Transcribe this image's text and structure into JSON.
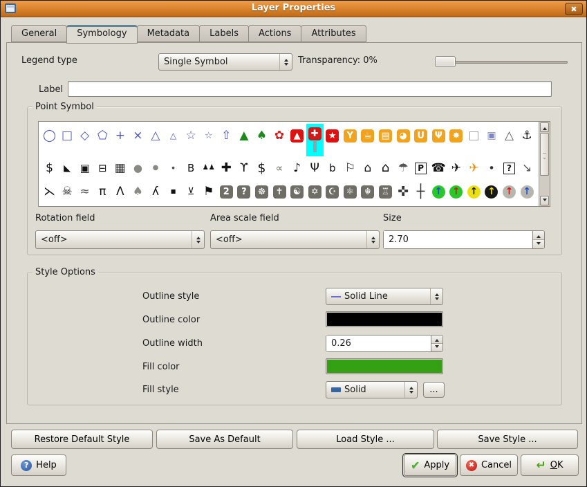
{
  "window": {
    "title": "Layer Properties"
  },
  "tabs": [
    {
      "label": "General",
      "active": false
    },
    {
      "label": "Symbology",
      "active": true
    },
    {
      "label": "Metadata",
      "active": false
    },
    {
      "label": "Labels",
      "active": false
    },
    {
      "label": "Actions",
      "active": false
    },
    {
      "label": "Attributes",
      "active": false
    }
  ],
  "legend": {
    "label": "Legend type",
    "value": "Single Symbol",
    "transparency_label": "Transparency: 0%",
    "transparency_percent": 0
  },
  "label_field": {
    "label": "Label",
    "value": "",
    "placeholder": ""
  },
  "point_symbol": {
    "title": "Point Symbol",
    "rotation": {
      "label": "Rotation field",
      "value": "<off>"
    },
    "area_scale": {
      "label": "Area scale field",
      "value": "<off>"
    },
    "size": {
      "label": "Size",
      "value": "2.70"
    },
    "rows": [
      [
        {
          "n": "circle",
          "g": "◯",
          "c": "#4a54c4"
        },
        {
          "n": "square",
          "g": "□",
          "c": "#4a54c4"
        },
        {
          "n": "diamond",
          "g": "◇",
          "c": "#4a54c4"
        },
        {
          "n": "pentagon",
          "g": "⬠",
          "c": "#4a54c4"
        },
        {
          "n": "cross",
          "g": "+",
          "c": "#4a54c4"
        },
        {
          "n": "x",
          "g": "×",
          "c": "#4a54c4"
        },
        {
          "n": "triangle",
          "g": "△",
          "c": "#4a54c4"
        },
        {
          "n": "triangle-small",
          "g": "△",
          "c": "#4a54c4",
          "fs": 12
        },
        {
          "n": "star",
          "g": "☆",
          "c": "#4a54c4"
        },
        {
          "n": "star-small",
          "g": "☆",
          "c": "#4a54c4",
          "fs": 13
        },
        {
          "n": "arrow-up",
          "g": "⇧",
          "c": "#4a54c4"
        },
        {
          "n": "pine-tree",
          "g": "▲",
          "c": "#1e8a1e"
        },
        {
          "n": "round-tree",
          "g": "♠",
          "c": "#1e8a1e"
        },
        {
          "n": "flower",
          "g": "✿",
          "c": "#d02020"
        },
        {
          "n": "flame",
          "g": "▲",
          "c": "#ffffff",
          "bg": "#e01010",
          "shape": "rbox"
        },
        {
          "n": "first-aid",
          "g": "✚",
          "c": "#ffffff",
          "bg": "#d01818",
          "shape": "rbox",
          "sel": true,
          "pole": true
        },
        {
          "n": "star-badge",
          "g": "★",
          "c": "#ffffff",
          "bg": "#e01010",
          "shape": "rbox"
        },
        {
          "n": "cocktail",
          "g": "Y",
          "c": "#ffffff",
          "bg": "#f2a31e",
          "shape": "rbox"
        },
        {
          "n": "cafe",
          "g": "☕",
          "c": "#ffffff",
          "bg": "#f2a31e",
          "shape": "rbox"
        },
        {
          "n": "cinema",
          "g": "▤",
          "c": "#ffffff",
          "bg": "#f2a31e",
          "shape": "rbox"
        },
        {
          "n": "pizza",
          "g": "◕",
          "c": "#ffffff",
          "bg": "#f2a31e",
          "shape": "rbox"
        },
        {
          "n": "beer",
          "g": "U",
          "c": "#ffffff",
          "bg": "#f2a31e",
          "shape": "rbox"
        },
        {
          "n": "restaurant",
          "g": "Ψ",
          "c": "#ffffff",
          "bg": "#f2a31e",
          "shape": "rbox"
        },
        {
          "n": "bakery",
          "g": "✸",
          "c": "#ffffff",
          "bg": "#f2a31e",
          "shape": "rbox"
        },
        {
          "n": "square-outline",
          "g": "□",
          "c": "#9a9a94"
        },
        {
          "n": "square-nested",
          "g": "▣",
          "c": "#7a86c8",
          "fs": 14
        },
        {
          "n": "triangle-outline",
          "g": "△",
          "c": "#555555"
        },
        {
          "n": "anchor",
          "g": "⚓",
          "c": "#111111"
        }
      ],
      [
        {
          "n": "dollar",
          "g": "$",
          "c": "#111111"
        },
        {
          "n": "boat",
          "g": "◣",
          "c": "#111111",
          "fs": 13
        },
        {
          "n": "camera",
          "g": "▣",
          "c": "#111111",
          "fs": 15
        },
        {
          "n": "car",
          "g": "⊟",
          "c": "#111111",
          "fs": 15
        },
        {
          "n": "building",
          "g": "▦",
          "c": "#333333"
        },
        {
          "n": "ellipse",
          "g": "●",
          "c": "#8a8a84",
          "fs": 15
        },
        {
          "n": "circle-small",
          "g": "●",
          "c": "#8a8a84",
          "fs": 10
        },
        {
          "n": "dot",
          "g": "●",
          "c": "#555555",
          "fs": 5
        },
        {
          "n": "gas-pump",
          "g": "B",
          "c": "#111111",
          "fs": 15
        },
        {
          "n": "people",
          "g": "♟♟",
          "c": "#111111",
          "fs": 10
        },
        {
          "n": "medical-cross",
          "g": "✚",
          "c": "#111111",
          "fs": 18
        },
        {
          "n": "deer",
          "g": "ϒ",
          "c": "#111111"
        },
        {
          "n": "dollar-large",
          "g": "$",
          "c": "#111111",
          "fs": 19
        },
        {
          "n": "fish",
          "g": "∝",
          "c": "#6a6a64",
          "fs": 15
        },
        {
          "n": "flag-note",
          "g": "♪",
          "c": "#111111"
        },
        {
          "n": "fork-knife",
          "g": "Ψ",
          "c": "#111111"
        },
        {
          "n": "fuel",
          "g": "b",
          "c": "#111111",
          "fs": 15
        },
        {
          "n": "golf",
          "g": "⚐",
          "c": "#111111"
        },
        {
          "n": "house-outline",
          "g": "⌂",
          "c": "#111111"
        },
        {
          "n": "house",
          "g": "⌂",
          "c": "#000000",
          "fs": 18
        },
        {
          "n": "balloon",
          "g": "☂",
          "c": "#555555"
        },
        {
          "n": "parking",
          "g": "P",
          "c": "#111111",
          "shape": "box"
        },
        {
          "n": "telephone",
          "g": "☎",
          "c": "#111111"
        },
        {
          "n": "airplane",
          "g": "✈",
          "c": "#111111"
        },
        {
          "n": "airplane-orange",
          "g": "✈",
          "c": "#e8941c"
        },
        {
          "n": "dot-small",
          "g": "●",
          "c": "#333333",
          "fs": 6
        },
        {
          "n": "question",
          "g": "?",
          "c": "#111111",
          "shape": "box"
        },
        {
          "n": "arrow-corner",
          "g": "↘",
          "c": "#555555"
        }
      ],
      [
        {
          "n": "skier",
          "g": "⋋",
          "c": "#111111"
        },
        {
          "n": "skull",
          "g": "☠",
          "c": "#111111"
        },
        {
          "n": "swimmer",
          "g": "≈",
          "c": "#555555"
        },
        {
          "n": "picnic-table",
          "g": "π",
          "c": "#111111"
        },
        {
          "n": "tent",
          "g": "Λ",
          "c": "#111111"
        },
        {
          "n": "tree-gray",
          "g": "♠",
          "c": "#8a8a84"
        },
        {
          "n": "hiker",
          "g": "ʎ",
          "c": "#111111"
        },
        {
          "n": "square-small",
          "g": "■",
          "c": "#111111",
          "fs": 8
        },
        {
          "n": "mine-cart",
          "g": "⊻",
          "c": "#111111",
          "fs": 14
        },
        {
          "n": "flag",
          "g": "⚑",
          "c": "#111111"
        },
        {
          "n": "badge-2",
          "g": "2",
          "c": "#ffffff",
          "bg": "#6e6e66",
          "shape": "rbox"
        },
        {
          "n": "badge-question",
          "g": "?",
          "c": "#ffffff",
          "bg": "#6e6e66",
          "shape": "rbox"
        },
        {
          "n": "badge-dharma-wheel",
          "g": "☸",
          "c": "#ffffff",
          "bg": "#6e6e66",
          "shape": "rbox"
        },
        {
          "n": "badge-cross",
          "g": "✝",
          "c": "#ffffff",
          "bg": "#6e6e66",
          "shape": "rbox"
        },
        {
          "n": "badge-yin-yang",
          "g": "☯",
          "c": "#ffffff",
          "bg": "#6e6e66",
          "shape": "rbox"
        },
        {
          "n": "badge-star-of-david",
          "g": "✡",
          "c": "#ffffff",
          "bg": "#6e6e66",
          "shape": "rbox"
        },
        {
          "n": "badge-crescent",
          "g": "☪",
          "c": "#ffffff",
          "bg": "#6e6e66",
          "shape": "rbox"
        },
        {
          "n": "badge-atom",
          "g": "⚛",
          "c": "#ffffff",
          "bg": "#6e6e66",
          "shape": "rbox"
        },
        {
          "n": "badge-khanda",
          "g": "☬",
          "c": "#ffffff",
          "bg": "#6e6e66",
          "shape": "rbox"
        },
        {
          "n": "badge-temple",
          "g": "♖",
          "c": "#ffffff",
          "bg": "#6e6e66",
          "shape": "rbox"
        },
        {
          "n": "compass-rose",
          "g": "✜",
          "c": "#333333",
          "fs": 19
        },
        {
          "n": "north-arrow",
          "g": "┼",
          "c": "#333333",
          "fs": 19
        },
        {
          "n": "arrow-marker-green-blue",
          "g": "↑",
          "c": "#2050cc",
          "bg": "#28c828",
          "shape": "circle"
        },
        {
          "n": "arrow-marker-green-red",
          "g": "↑",
          "c": "#d01818",
          "bg": "#28c828",
          "shape": "circle"
        },
        {
          "n": "arrow-marker-yellow-black",
          "g": "↑",
          "c": "#222222",
          "bg": "#ecdf12",
          "shape": "circle"
        },
        {
          "n": "arrow-marker-black-yellow",
          "g": "↑",
          "c": "#ecdf12",
          "bg": "#181818",
          "shape": "circle"
        },
        {
          "n": "arrow-marker-gray-red",
          "g": "↑",
          "c": "#d01818",
          "bg": "#b6b6ae",
          "shape": "circle"
        },
        {
          "n": "arrow-marker-gray-blue",
          "g": "↑",
          "c": "#2050cc",
          "bg": "#b6b6ae",
          "shape": "circle"
        }
      ]
    ]
  },
  "style_options": {
    "title": "Style Options",
    "outline_style": {
      "label": "Outline style",
      "value": "Solid Line"
    },
    "outline_color": {
      "label": "Outline color",
      "color": "#000000"
    },
    "outline_width": {
      "label": "Outline width",
      "value": "0.26"
    },
    "fill_color": {
      "label": "Fill color",
      "color": "#33a113"
    },
    "fill_style": {
      "label": "Fill style",
      "value": "Solid",
      "more_label": "..."
    }
  },
  "style_buttons": [
    "Restore Default Style",
    "Save As Default",
    "Load Style ...",
    "Save Style ..."
  ],
  "actions": {
    "help": "Help",
    "apply": "Apply",
    "cancel": "Cancel",
    "ok_accel": "O",
    "ok_rest": "K"
  },
  "icons": {
    "close": "✖",
    "check": "✔",
    "cancel_x": "✖",
    "enter": "↵",
    "help_q": "?"
  }
}
